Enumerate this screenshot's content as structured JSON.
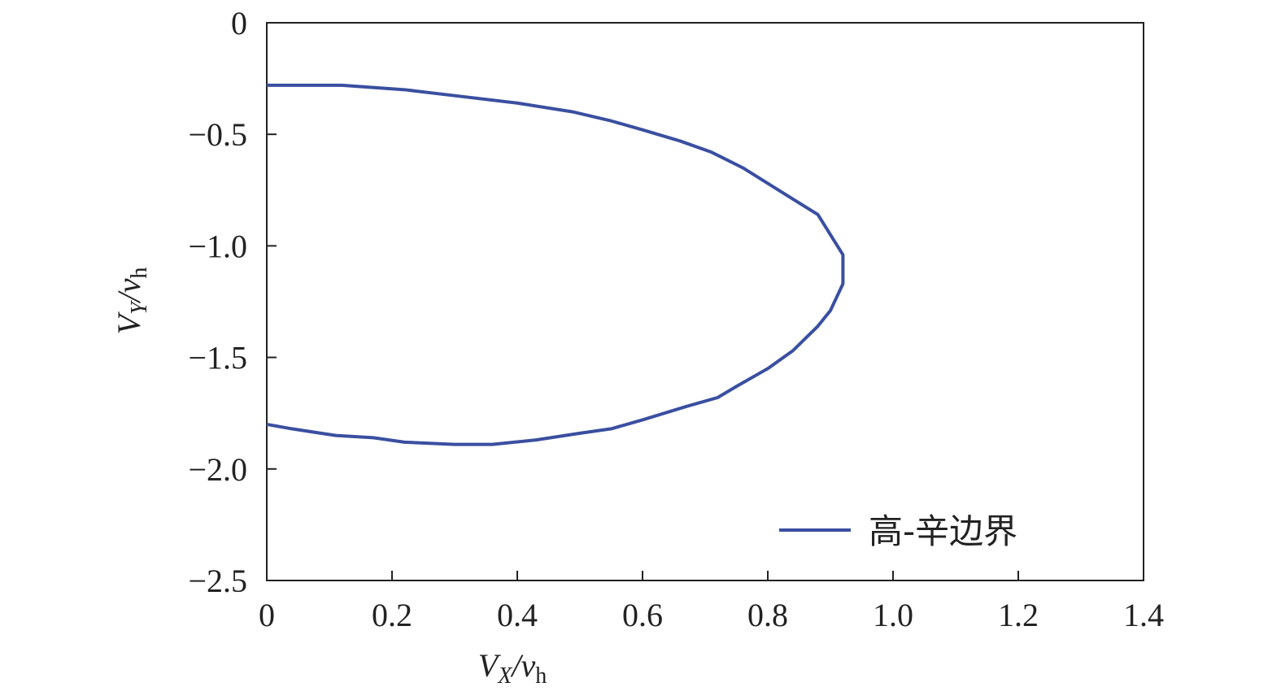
{
  "chart_data": {
    "type": "line",
    "xlabel": [
      "V",
      "X",
      "/v",
      "h"
    ],
    "ylabel": [
      "V",
      "Y",
      "/v",
      "h"
    ],
    "xlim": [
      0,
      1.4
    ],
    "ylim": [
      -2.5,
      0
    ],
    "xticks": [
      0,
      0.2,
      0.4,
      0.6,
      0.8,
      {
        "value": 1,
        "label": "1.0"
      },
      1.2,
      1.4
    ],
    "yticks": [
      0,
      {
        "value": -0.5,
        "label": "−0.5"
      },
      {
        "value": -1,
        "label": "−1.0"
      },
      {
        "value": -1.5,
        "label": "−1.5"
      },
      {
        "value": -2,
        "label": "−2.0"
      },
      {
        "value": -2.5,
        "label": "−2.5"
      }
    ],
    "legend": "lower right",
    "series": [
      {
        "name": "高-辛边界",
        "color": "#3a4fa0",
        "x": [
          0,
          0.06,
          0.12,
          0.17,
          0.22,
          0.31,
          0.4,
          0.49,
          0.55,
          0.6,
          0.66,
          0.71,
          0.76,
          0.8,
          0.84,
          0.88,
          0.9,
          0.92,
          0.92,
          0.92,
          0.9,
          0.88,
          0.84,
          0.8,
          0.75,
          0.72,
          0.67,
          0.6,
          0.55,
          0.5,
          0.43,
          0.36,
          0.3,
          0.22,
          0.17,
          0.11,
          0.04,
          0
        ],
        "values": [
          -0.28,
          -0.28,
          -0.28,
          -0.29,
          -0.3,
          -0.33,
          -0.36,
          -0.4,
          -0.44,
          -0.48,
          -0.53,
          -0.58,
          -0.65,
          -0.72,
          -0.79,
          -0.86,
          -0.95,
          -1.04,
          -1.11,
          -1.17,
          -1.29,
          -1.36,
          -1.47,
          -1.55,
          -1.63,
          -1.68,
          -1.72,
          -1.78,
          -1.82,
          -1.84,
          -1.87,
          -1.89,
          -1.89,
          -1.88,
          -1.86,
          -1.85,
          -1.82,
          -1.8
        ]
      }
    ]
  }
}
